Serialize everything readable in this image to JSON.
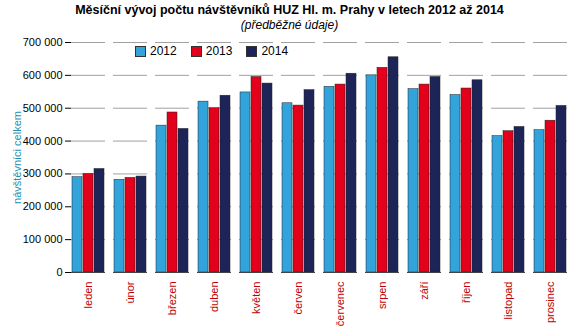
{
  "chart_data": {
    "type": "bar",
    "title": "Měsíční vývoj počtu návštěvníků HUZ Hl. m. Prahy v letech 2012 až 2014",
    "subtitle": "(předběžné údaje)",
    "y_label": "návštěvníci celkem",
    "categories": [
      "leden",
      "únor",
      "březen",
      "duben",
      "květen",
      "červen",
      "červenec",
      "srpen",
      "září",
      "říjen",
      "listopad",
      "prosinec"
    ],
    "series": [
      {
        "name": "2012",
        "color": "#33a3dc",
        "values": [
          290000,
          282000,
          447000,
          520000,
          548000,
          515000,
          565000,
          600000,
          558000,
          540000,
          415000,
          433000
        ]
      },
      {
        "name": "2013",
        "color": "#e3001b",
        "values": [
          300000,
          288000,
          487000,
          500000,
          595000,
          508000,
          572000,
          623000,
          572000,
          560000,
          430000,
          462000
        ]
      },
      {
        "name": "2014",
        "color": "#1c2458",
        "values": [
          315000,
          292000,
          437000,
          538000,
          575000,
          555000,
          605000,
          655000,
          595000,
          585000,
          443000,
          507000
        ]
      }
    ],
    "ylim": [
      0,
      700000
    ],
    "yticks": [
      0,
      {
        "value": 100000,
        "label": "100 000"
      },
      {
        "value": 200000,
        "label": "200 000"
      },
      {
        "value": 300000,
        "label": "300 000"
      },
      {
        "value": 400000,
        "label": "400 000"
      },
      {
        "value": 500000,
        "label": "500 000"
      },
      {
        "value": 600000,
        "label": "600 000"
      },
      {
        "value": 700000,
        "label": "700 000"
      }
    ],
    "grid": true,
    "legend": "top"
  }
}
